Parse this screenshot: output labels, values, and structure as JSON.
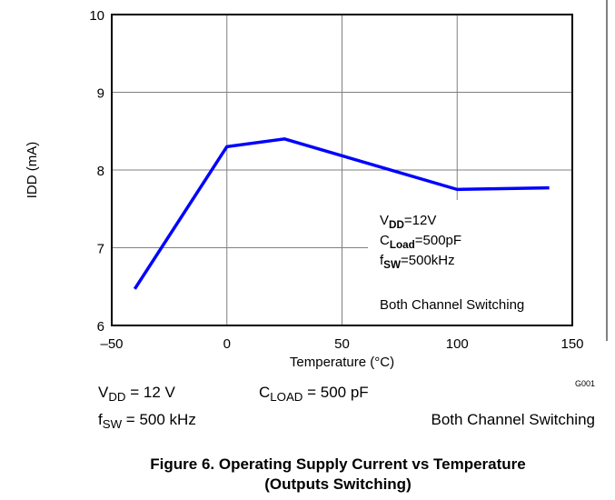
{
  "chart_data": {
    "type": "line",
    "xlabel": "Temperature (°C)",
    "ylabel": "IDD (mA)",
    "x": [
      -40,
      0,
      25,
      100,
      140
    ],
    "values": [
      6.47,
      8.3,
      8.4,
      7.75,
      7.77
    ],
    "color": "#0000ff",
    "xlim": [
      -50,
      150
    ],
    "xticks": [
      {
        "value": -50,
        "label": "–50"
      },
      0,
      50,
      100,
      150
    ],
    "ylim": [
      6,
      10
    ],
    "yticks": [
      6,
      7,
      8,
      9,
      10
    ],
    "grid": true,
    "code": "G001",
    "notes": [
      {
        "base": "V",
        "sub": "DD",
        "rest": "=12V"
      },
      {
        "base": "C",
        "sub": "Load",
        "rest": "=500pF"
      },
      {
        "base": "f",
        "sub": "SW",
        "rest": "=500kHz"
      }
    ],
    "notes_footer": "Both Channel Switching"
  },
  "conditions": [
    {
      "base": "V",
      "sub": "DD",
      "rest": " = 12 V"
    },
    {
      "base": "C",
      "sub": "LOAD",
      "rest": " = 500 pF"
    },
    {
      "base": "f",
      "sub": "SW",
      "rest": " = 500 kHz"
    }
  ],
  "conditions_footer": "Both Channel Switching",
  "caption": [
    "Figure 6. Operating Supply Current vs Temperature",
    "(Outputs Switching)"
  ]
}
